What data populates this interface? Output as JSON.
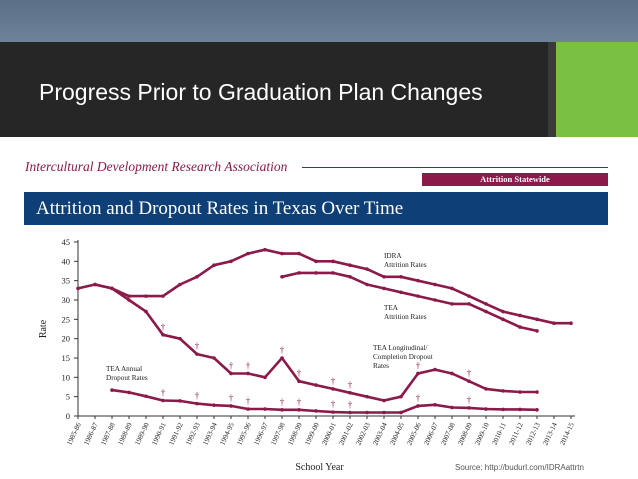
{
  "slide": {
    "title": "Progress Prior to Graduation Plan Changes",
    "source": "Source: http://budurl.com/IDRAattrtn"
  },
  "header": {
    "organization": "Intercultural Development Research Association",
    "badge": "Attrition Statewide",
    "chart_title": "Attrition and Dropout Rates in Texas Over Time"
  },
  "colors": {
    "accent_green": "#7ac143",
    "title_bar": "#262626",
    "navy": "#0e3f77",
    "maroon": "#8b1a4a"
  },
  "chart_data": {
    "type": "line",
    "title": "Attrition and Dropout Rates in Texas Over Time",
    "xlabel": "School Year",
    "ylabel": "Rate",
    "ylim": [
      0,
      45
    ],
    "yticks": [
      0,
      5,
      10,
      15,
      20,
      25,
      30,
      35,
      40,
      45
    ],
    "categories": [
      "1985-86",
      "1986-87",
      "1987-88",
      "1988-89",
      "1989-90",
      "1990-91",
      "1991-92",
      "1992-93",
      "1993-94",
      "1994-95",
      "1995-96",
      "1996-97",
      "1997-98",
      "1998-99",
      "1999-00",
      "2000-01",
      "2001-02",
      "2002-03",
      "2003-04",
      "2004-05",
      "2005-06",
      "2006-07",
      "2007-08",
      "2008-09",
      "2009-10",
      "2010-11",
      "2011-12",
      "2012-13",
      "2013-14",
      "2014-15"
    ],
    "series": [
      {
        "name": "IDRA Attrition Rates",
        "label_lines": [
          "IDRA",
          "Attrition Rates"
        ],
        "values": [
          33,
          34,
          33,
          31,
          31,
          31,
          34,
          36,
          39,
          40,
          42,
          43,
          42,
          42,
          40,
          40,
          39,
          38,
          36,
          36,
          35,
          34,
          33,
          31,
          29,
          27,
          26,
          25,
          24,
          24
        ]
      },
      {
        "name": "TEA Attrition Rates",
        "label_lines": [
          "TEA",
          "Attrition Rates"
        ],
        "values": [
          null,
          null,
          null,
          null,
          null,
          null,
          null,
          null,
          null,
          null,
          null,
          null,
          36,
          37,
          37,
          37,
          36,
          34,
          33,
          32,
          31,
          30,
          29,
          29,
          27,
          25,
          23,
          22,
          null,
          null
        ]
      },
      {
        "name": "TEA Annual Dropout Rates",
        "label_lines": [
          "TEA Annual",
          "Dropout Rates"
        ],
        "values": [
          null,
          null,
          6.7,
          6.1,
          5.1,
          4,
          3.9,
          3.2,
          2.8,
          2.6,
          1.8,
          1.8,
          1.6,
          1.6,
          1.3,
          1,
          0.9,
          0.9,
          0.9,
          0.9,
          2.6,
          2.9,
          2.2,
          2.1,
          1.8,
          1.7,
          1.7,
          1.6,
          null,
          null
        ]
      },
      {
        "name": "TEA Longitudinal/Completion Dropout Rates",
        "label_lines": [
          "TEA Longitudinal/",
          "Completion Dropout",
          "Rates"
        ],
        "values": [
          null,
          34,
          33,
          30,
          27,
          21,
          20,
          16,
          15,
          11,
          11,
          10,
          15,
          9,
          8,
          7,
          6,
          5,
          4,
          5,
          11,
          12,
          11,
          9,
          7,
          6.5,
          6.2,
          6.2,
          null,
          null
        ]
      }
    ],
    "annotation": "†",
    "dagger_indices": [
      5,
      7,
      9,
      10,
      12,
      13,
      15,
      16,
      20,
      23
    ]
  }
}
